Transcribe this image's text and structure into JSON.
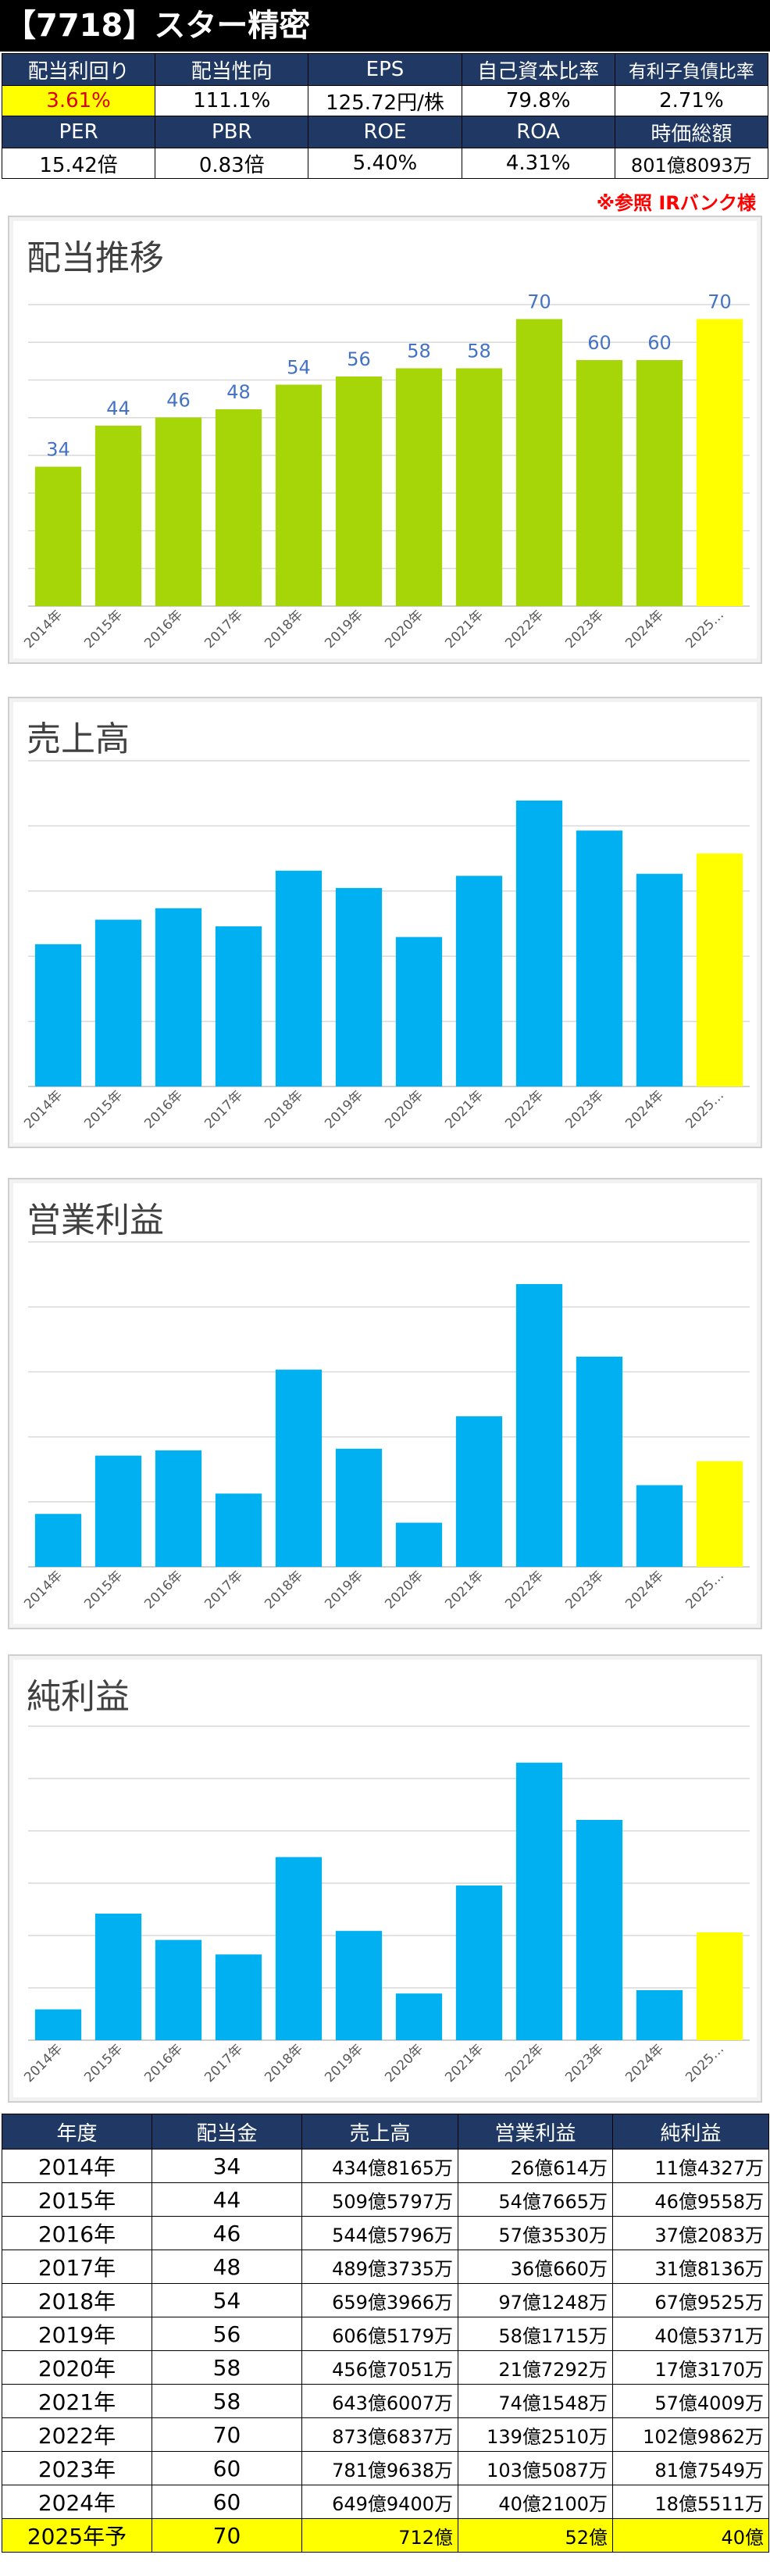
{
  "header": {
    "title": "【7718】スター精密"
  },
  "metrics": {
    "row1_labels": [
      "配当利回り",
      "配当性向",
      "EPS",
      "自己資本比率",
      "有利子負債比率"
    ],
    "row1_values": [
      "3.61%",
      "111.1%",
      "125.72円/株",
      "79.8%",
      "2.71%"
    ],
    "row2_labels": [
      "PER",
      "PBR",
      "ROE",
      "ROA",
      "時価総額"
    ],
    "row2_values": [
      "15.42倍",
      "0.83倍",
      "5.40%",
      "4.31%",
      "801億8093万"
    ]
  },
  "source_note": "※参照 IRバンク様",
  "colors": {
    "dividend_bar": "#a6d608",
    "finance_bar": "#00b0f0",
    "forecast_bar": "#ffff00",
    "value_label": "#4472c4",
    "header_navy": "#1f3864"
  },
  "chart_data": [
    {
      "type": "bar",
      "title": "配当推移",
      "categories": [
        "2014年",
        "2015年",
        "2016年",
        "2017年",
        "2018年",
        "2019年",
        "2020年",
        "2021年",
        "2022年",
        "2023年",
        "2024年",
        "2025…"
      ],
      "values": [
        34,
        44,
        46,
        48,
        54,
        56,
        58,
        58,
        70,
        60,
        60,
        70
      ],
      "data_labels": [
        "34",
        "44",
        "46",
        "48",
        "54",
        "56",
        "58",
        "58",
        "70",
        "60",
        "60",
        "70"
      ],
      "ylim": [
        0,
        80
      ],
      "grid": true
    },
    {
      "type": "bar",
      "title": "売上高",
      "unit": "億円",
      "categories": [
        "2014年",
        "2015年",
        "2016年",
        "2017年",
        "2018年",
        "2019年",
        "2020年",
        "2021年",
        "2022年",
        "2023年",
        "2024年",
        "2025…"
      ],
      "values": [
        434.8,
        509.6,
        544.6,
        489.4,
        659.4,
        606.5,
        456.7,
        643.6,
        873.7,
        781.96,
        649.9,
        712
      ],
      "ylim": [
        0,
        1000
      ],
      "grid": true
    },
    {
      "type": "bar",
      "title": "営業利益",
      "unit": "億円",
      "categories": [
        "2014年",
        "2015年",
        "2016年",
        "2017年",
        "2018年",
        "2019年",
        "2020年",
        "2021年",
        "2022年",
        "2023年",
        "2024年",
        "2025…"
      ],
      "values": [
        26.06,
        54.77,
        57.35,
        36.07,
        97.12,
        58.17,
        21.73,
        74.15,
        139.25,
        103.51,
        40.21,
        52
      ],
      "ylim": [
        0,
        160
      ],
      "grid": true
    },
    {
      "type": "bar",
      "title": "純利益",
      "unit": "億円",
      "categories": [
        "2014年",
        "2015年",
        "2016年",
        "2017年",
        "2018年",
        "2019年",
        "2020年",
        "2021年",
        "2022年",
        "2023年",
        "2024年",
        "2025…"
      ],
      "values": [
        11.43,
        46.96,
        37.21,
        31.81,
        67.95,
        40.54,
        17.32,
        57.4,
        102.99,
        81.75,
        18.55,
        40
      ],
      "ylim": [
        0,
        120
      ],
      "grid": true
    }
  ],
  "table": {
    "headers": [
      "年度",
      "配当金",
      "売上高",
      "営業利益",
      "純利益"
    ],
    "rows": [
      [
        "2014年",
        "34",
        "434億8165万",
        "26億614万",
        "11億4327万"
      ],
      [
        "2015年",
        "44",
        "509億5797万",
        "54億7665万",
        "46億9558万"
      ],
      [
        "2016年",
        "46",
        "544億5796万",
        "57億3530万",
        "37億2083万"
      ],
      [
        "2017年",
        "48",
        "489億3735万",
        "36億660万",
        "31億8136万"
      ],
      [
        "2018年",
        "54",
        "659億3966万",
        "97億1248万",
        "67億9525万"
      ],
      [
        "2019年",
        "56",
        "606億5179万",
        "58億1715万",
        "40億5371万"
      ],
      [
        "2020年",
        "58",
        "456億7051万",
        "21億7292万",
        "17億3170万"
      ],
      [
        "2021年",
        "58",
        "643億6007万",
        "74億1548万",
        "57億4009万"
      ],
      [
        "2022年",
        "70",
        "873億6837万",
        "139億2510万",
        "102億9862万"
      ],
      [
        "2023年",
        "60",
        "781億9638万",
        "103億5087万",
        "81億7549万"
      ],
      [
        "2024年",
        "60",
        "649億9400万",
        "40億2100万",
        "18億5511万"
      ]
    ],
    "forecast_row": [
      "2025年予",
      "70",
      "712億",
      "52億",
      "40億"
    ]
  }
}
